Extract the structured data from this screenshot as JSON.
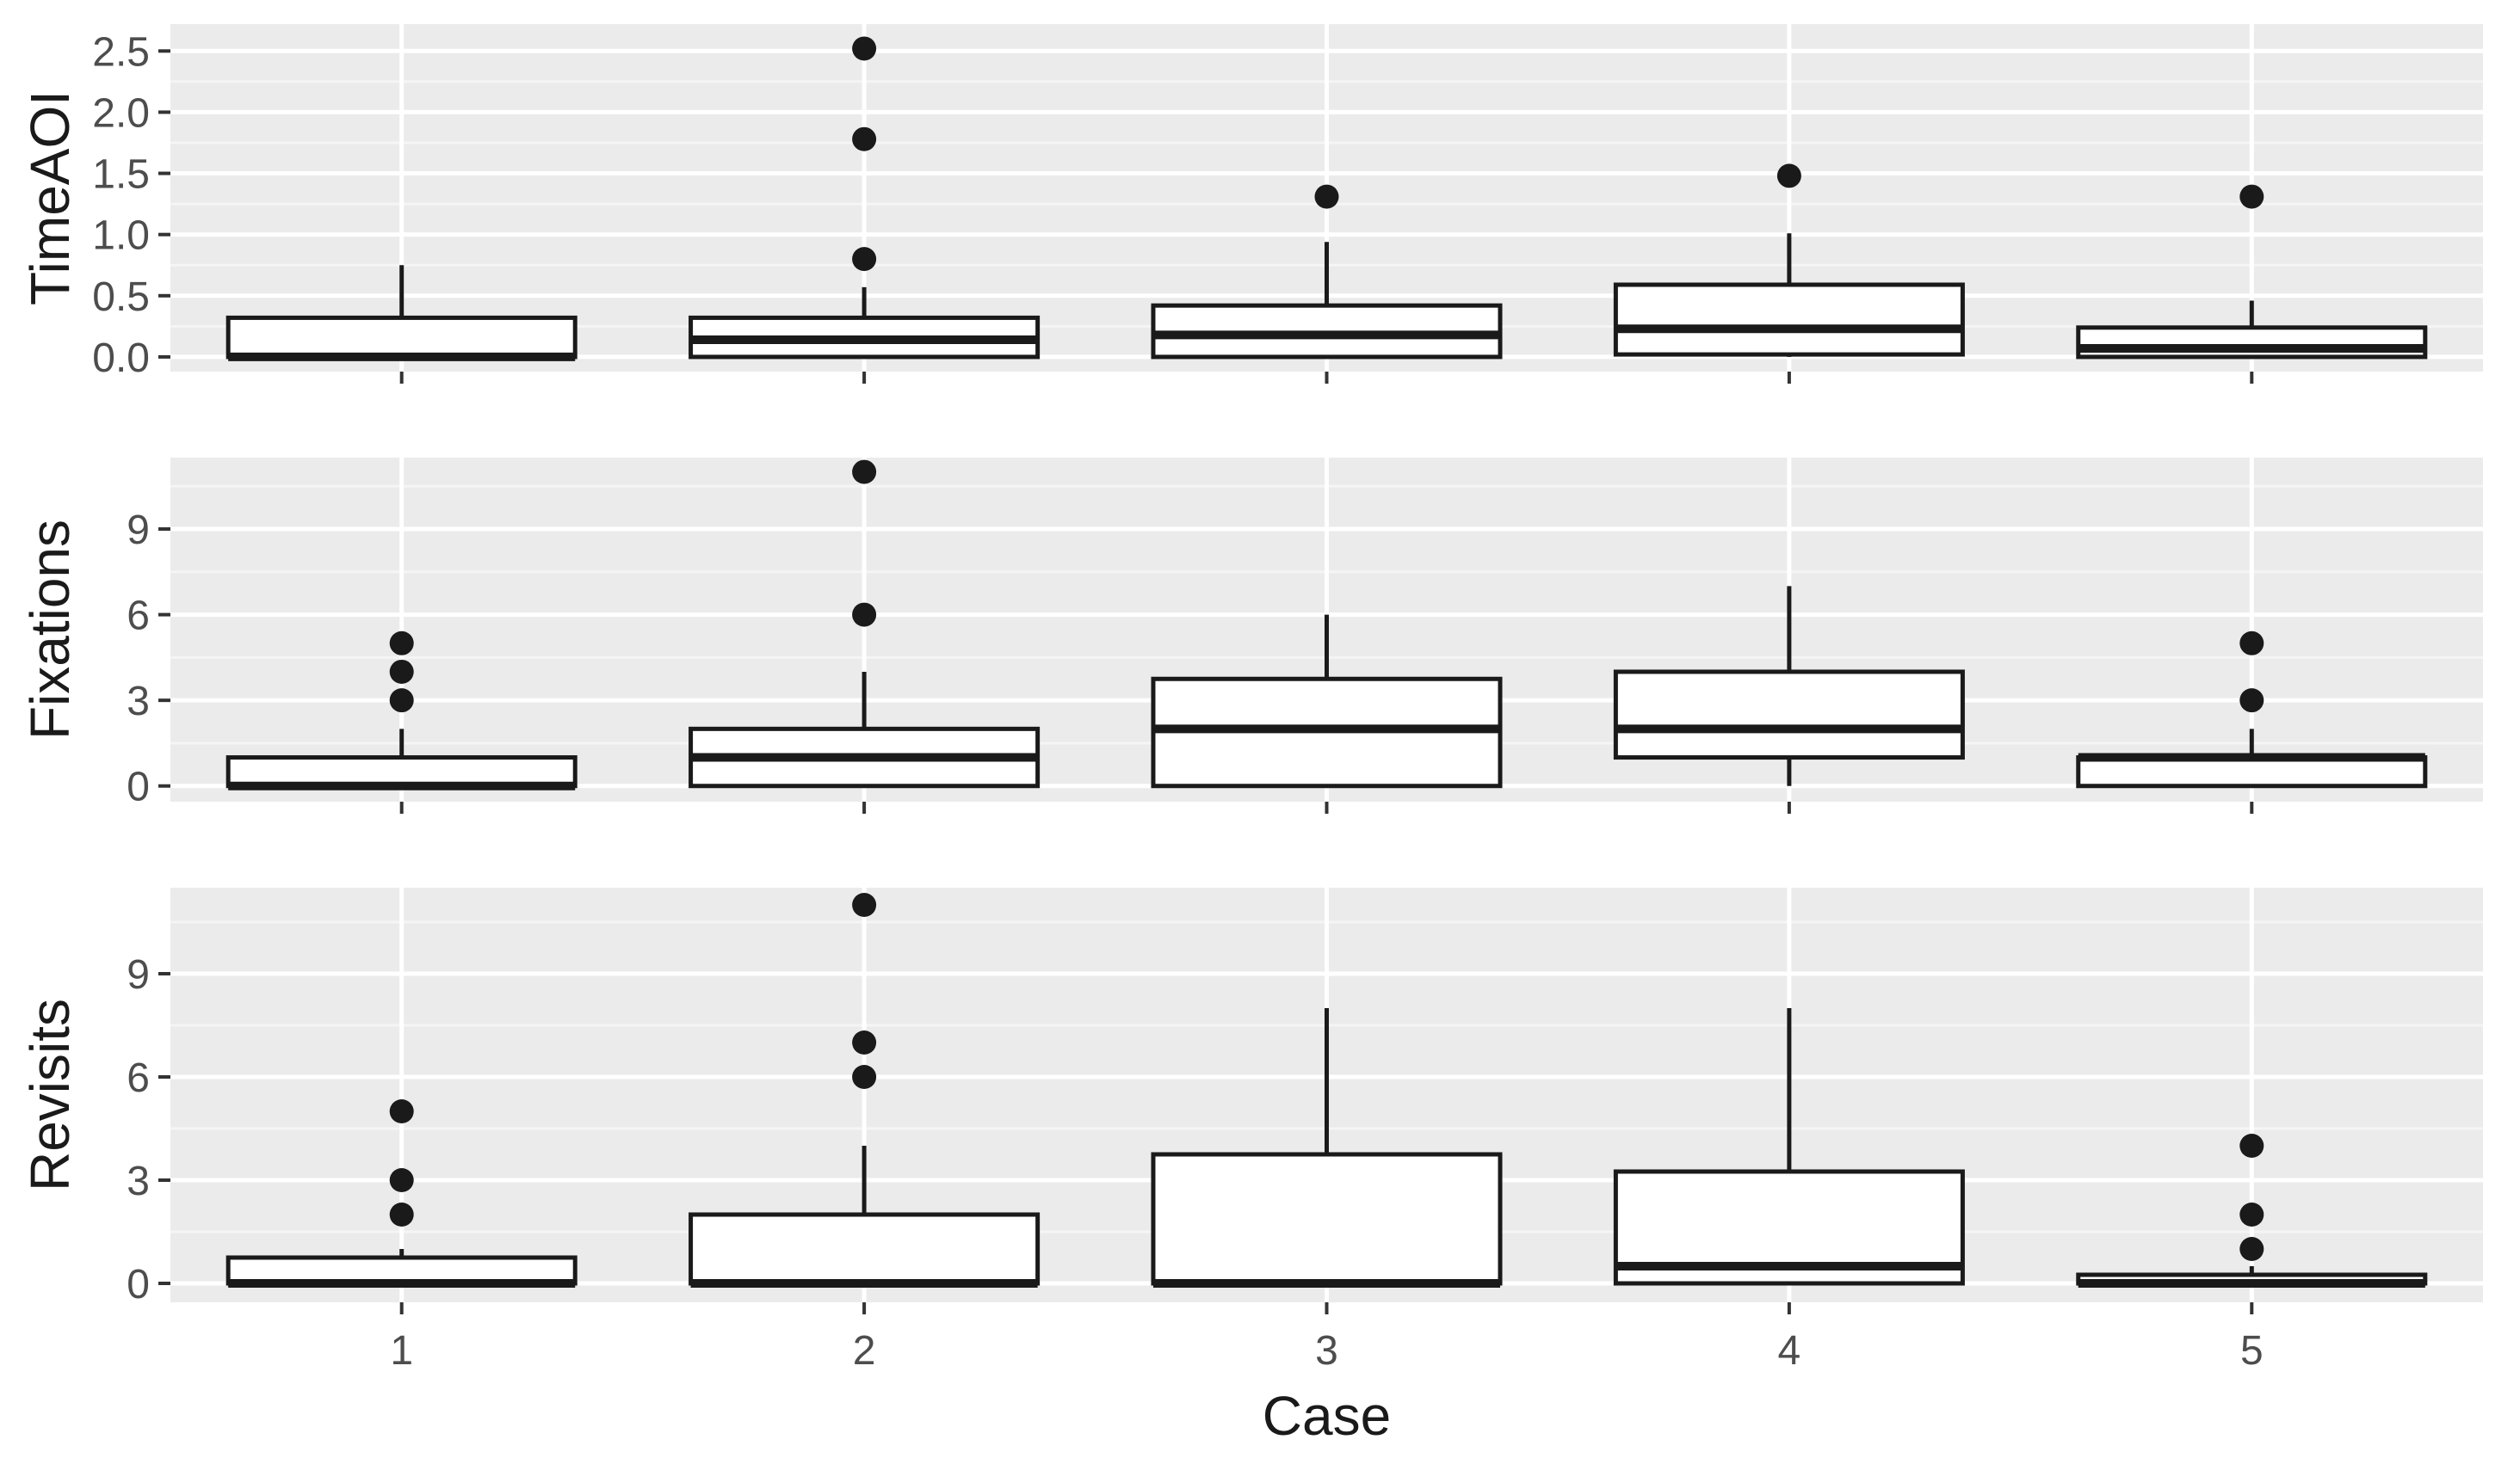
{
  "chart_data": {
    "type": "boxplot",
    "xlabel": "Case",
    "categories": [
      "1",
      "2",
      "3",
      "4",
      "5"
    ],
    "grid": true,
    "panels": [
      {
        "ylabel": "TimeAOI",
        "ylim": [
          -0.12,
          2.72
        ],
        "yticks": [
          0.0,
          0.5,
          1.0,
          1.5,
          2.0,
          2.5
        ],
        "ytick_labels": [
          "0.0",
          "0.5",
          "1.0",
          "1.5",
          "2.0",
          "2.5"
        ],
        "boxes": [
          {
            "category": "1",
            "min": 0.0,
            "q1": 0.0,
            "median": 0.0,
            "q3": 0.32,
            "max": 0.75,
            "outliers": []
          },
          {
            "category": "2",
            "min": 0.0,
            "q1": 0.0,
            "median": 0.14,
            "q3": 0.32,
            "max": 0.57,
            "outliers": [
              0.8,
              1.78,
              2.52
            ]
          },
          {
            "category": "3",
            "min": 0.0,
            "q1": 0.0,
            "median": 0.18,
            "q3": 0.42,
            "max": 0.94,
            "outliers": [
              1.31
            ]
          },
          {
            "category": "4",
            "min": 0.0,
            "q1": 0.02,
            "median": 0.23,
            "q3": 0.59,
            "max": 1.01,
            "outliers": [
              1.48
            ]
          },
          {
            "category": "5",
            "min": 0.0,
            "q1": 0.0,
            "median": 0.07,
            "q3": 0.24,
            "max": 0.46,
            "outliers": [
              1.31
            ]
          }
        ]
      },
      {
        "ylabel": "Fixations",
        "ylim": [
          -0.55,
          11.5
        ],
        "yticks": [
          0,
          3,
          6,
          9
        ],
        "ytick_labels": [
          "0",
          "3",
          "6",
          "9"
        ],
        "boxes": [
          {
            "category": "1",
            "min": 0,
            "q1": 0,
            "median": 0,
            "q3": 1,
            "max": 2,
            "outliers": [
              3,
              4,
              5
            ]
          },
          {
            "category": "2",
            "min": 0,
            "q1": 0,
            "median": 1,
            "q3": 2,
            "max": 4,
            "outliers": [
              6,
              11
            ]
          },
          {
            "category": "3",
            "min": 0,
            "q1": 0,
            "median": 2,
            "q3": 3.75,
            "max": 6,
            "outliers": []
          },
          {
            "category": "4",
            "min": 0,
            "q1": 1,
            "median": 2,
            "q3": 4,
            "max": 7,
            "outliers": []
          },
          {
            "category": "5",
            "min": 0,
            "q1": 0,
            "median": 1,
            "q3": 1,
            "max": 2,
            "outliers": [
              3,
              5
            ]
          }
        ]
      },
      {
        "ylabel": "Revisits",
        "ylim": [
          -0.55,
          11.5
        ],
        "yticks": [
          0,
          3,
          6,
          9
        ],
        "ytick_labels": [
          "0",
          "3",
          "6",
          "9"
        ],
        "boxes": [
          {
            "category": "1",
            "min": 0,
            "q1": 0,
            "median": 0,
            "q3": 0.75,
            "max": 1,
            "outliers": [
              2,
              3,
              5
            ]
          },
          {
            "category": "2",
            "min": 0,
            "q1": 0,
            "median": 0,
            "q3": 2,
            "max": 4,
            "outliers": [
              6,
              7,
              11
            ]
          },
          {
            "category": "3",
            "min": 0,
            "q1": 0,
            "median": 0,
            "q3": 3.75,
            "max": 8,
            "outliers": []
          },
          {
            "category": "4",
            "min": 0,
            "q1": 0,
            "median": 0.5,
            "q3": 3.25,
            "max": 8,
            "outliers": []
          },
          {
            "category": "5",
            "min": 0,
            "q1": 0,
            "median": 0,
            "q3": 0.25,
            "max": 0.5,
            "outliers": [
              1,
              2,
              4
            ]
          }
        ]
      }
    ]
  },
  "colors": {
    "panel_background": "#ebebeb",
    "grid_major": "#ffffff",
    "grid_minor": "#f5f5f5",
    "box_fill": "#ffffff",
    "box_stroke": "#1a1a1a",
    "outlier": "#1a1a1a",
    "tick_text": "#4d4d4d",
    "axis_title": "#1a1a1a"
  }
}
